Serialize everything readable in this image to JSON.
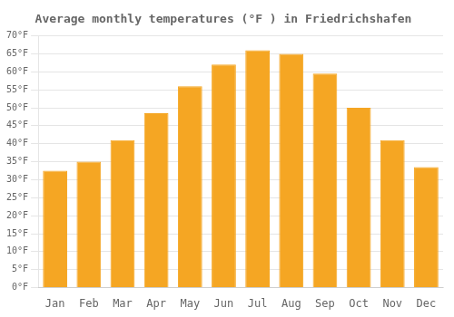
{
  "chart_data": {
    "type": "bar",
    "title": "Average monthly temperatures (°F ) in Friedrichshafen",
    "categories": [
      "Jan",
      "Feb",
      "Mar",
      "Apr",
      "May",
      "Jun",
      "Jul",
      "Aug",
      "Sep",
      "Oct",
      "Nov",
      "Dec"
    ],
    "values": [
      32.5,
      35.0,
      41.0,
      48.5,
      56.0,
      62.0,
      66.0,
      65.0,
      59.5,
      50.0,
      41.0,
      33.5
    ],
    "color": "#F5A623",
    "ylim": [
      0,
      70
    ],
    "yticks": [
      {
        "value": 0,
        "label": "0°F"
      },
      {
        "value": 5,
        "label": "5°F"
      },
      {
        "value": 10,
        "label": "10°F"
      },
      {
        "value": 15,
        "label": "15°F"
      },
      {
        "value": 20,
        "label": "20°F"
      },
      {
        "value": 25,
        "label": "25°F"
      },
      {
        "value": 30,
        "label": "30°F"
      },
      {
        "value": 35,
        "label": "35°F"
      },
      {
        "value": 40,
        "label": "40°F"
      },
      {
        "value": 45,
        "label": "45°F"
      },
      {
        "value": 50,
        "label": "50°F"
      },
      {
        "value": 55,
        "label": "55°F"
      },
      {
        "value": 60,
        "label": "60°F"
      },
      {
        "value": 65,
        "label": "65°F"
      },
      {
        "value": 70,
        "label": "70°F"
      }
    ],
    "grid": true
  }
}
